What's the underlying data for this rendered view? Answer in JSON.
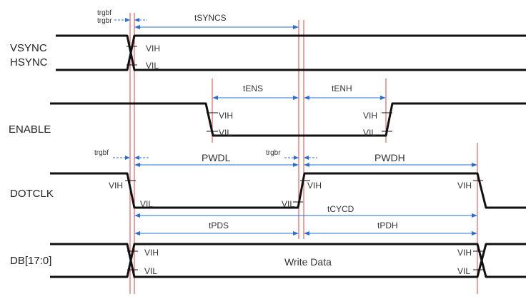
{
  "signals": {
    "vsync": "VSYNC",
    "hsync": "HSYNC",
    "enable": "ENABLE",
    "dotclk": "DOTCLK",
    "db": "DB[17:0]"
  },
  "timings": {
    "trgbf": "trgbf",
    "trgbr": "trgbr",
    "tsyncs": "tSYNCS",
    "tens": "tENS",
    "tenh": "tENH",
    "pwdl": "PWDL",
    "pwdh": "PWDH",
    "tcycd": "tCYCD",
    "tpds": "tPDS",
    "tpdh": "tPDH"
  },
  "levels": {
    "vih": "VIH",
    "vil": "VIL"
  },
  "db_content": "Write Data"
}
